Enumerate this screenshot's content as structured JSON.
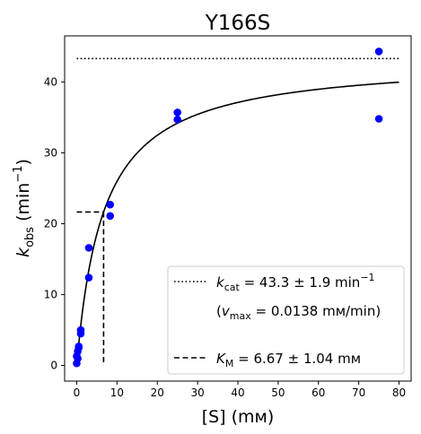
{
  "chart_data": {
    "type": "scatter",
    "title": "Y166S",
    "xlabel": "[S] (mм)",
    "ylabel": {
      "main": "k",
      "sub": "obs",
      "tail": " (min",
      "sup": "−1",
      "close": ")"
    },
    "xlim": [
      -3,
      83
    ],
    "ylim": [
      -2.2,
      46.5
    ],
    "xticks": [
      0,
      10,
      20,
      30,
      40,
      50,
      60,
      70,
      80
    ],
    "yticks": [
      0,
      10,
      20,
      30,
      40
    ],
    "grid": false,
    "legend_position": "lower right",
    "series": [
      {
        "kind": "points",
        "color": "#0000ff",
        "x": [
          0,
          0,
          0.25,
          0.25,
          0.5,
          0.5,
          1,
          1,
          3,
          3,
          8.3,
          8.3,
          25,
          25,
          75,
          75
        ],
        "y": [
          0.3,
          1.3,
          1.0,
          2.0,
          2.5,
          2.7,
          4.5,
          5.0,
          12.4,
          16.6,
          21.1,
          22.7,
          34.7,
          35.7,
          34.8,
          44.3
        ]
      },
      {
        "kind": "fit",
        "color": "#000000",
        "model": "michaelis-menten",
        "vmax": 43.3,
        "km": 6.67,
        "xrange": [
          0,
          80
        ]
      }
    ],
    "vmax_line": {
      "y": 43.3,
      "x": [
        0,
        80
      ],
      "style": "dotted"
    },
    "km_lines": {
      "x": 6.67,
      "y": 21.65,
      "style": "dashed"
    },
    "legend": {
      "kcat": {
        "sym": "k",
        "sub": "cat",
        "text": " = 43.3 ± 1.9 min",
        "sup": "−1"
      },
      "vmax": {
        "open": "(",
        "sym": "v",
        "sub": "max",
        "text": " = 0.0138 mм/min)"
      },
      "km": {
        "sym": "K",
        "sub": "M",
        "text": " = 6.67 ± 1.04 mм"
      }
    }
  }
}
